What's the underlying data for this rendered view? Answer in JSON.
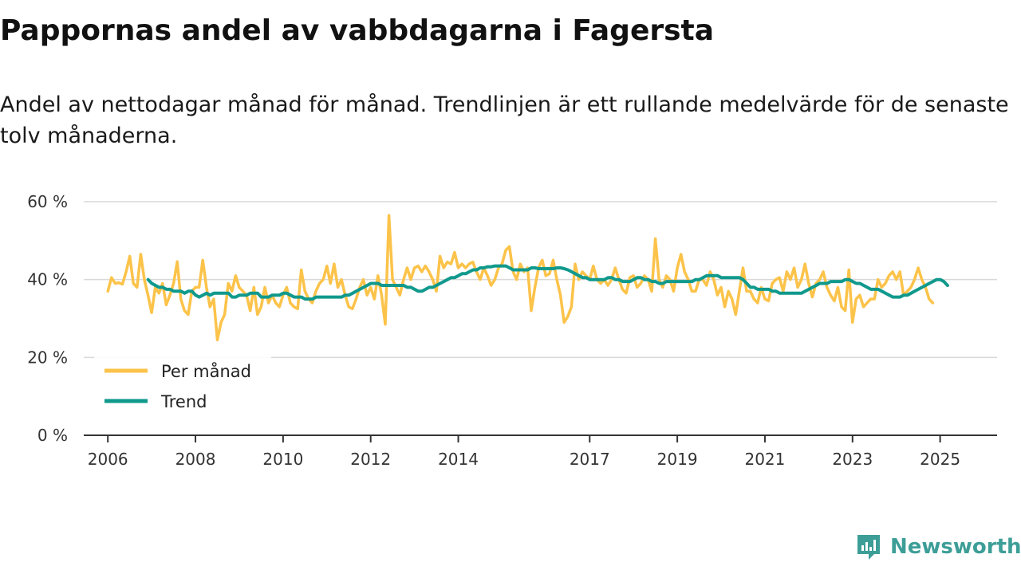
{
  "title": "Pappornas andel av vabbdagarna i Fagersta",
  "subtitle": "Andel av nettodagar månad för månad. Trendlinjen är ett rullande medelvärde för de senaste tolv månaderna.",
  "brand": {
    "name": "Newsworthy",
    "color": "#3d9e97",
    "icon": "newsworthy-logo-icon"
  },
  "chart_data": {
    "type": "line",
    "title": "Pappornas andel av vabbdagarna i Fagersta",
    "xlabel": "",
    "ylabel": "",
    "ylim": [
      0,
      60
    ],
    "xlim": [
      2005.45,
      2026.3
    ],
    "grid": true,
    "x_ticks": [
      2006,
      2008,
      2010,
      2012,
      2014,
      2017,
      2019,
      2021,
      2023,
      2025
    ],
    "x_tick_labels": [
      "2006",
      "2008",
      "2010",
      "2012",
      "2014",
      "2017",
      "2019",
      "2021",
      "2023",
      "2025"
    ],
    "y_ticks": [
      0,
      20,
      40,
      60
    ],
    "y_tick_labels": [
      "0 %",
      "20 %",
      "40 %",
      "60 %"
    ],
    "legend_position": "bottom-left",
    "series": [
      {
        "name": "Per månad",
        "color": "#fcc34a",
        "x_start": 2006.0,
        "step": 0.08333,
        "values": [
          37,
          40.5,
          39,
          39.2,
          38.8,
          42,
          46,
          39,
          38,
          46.5,
          40,
          36,
          31.5,
          38,
          36.5,
          39,
          33.5,
          36,
          39,
          44.6,
          35,
          32,
          31,
          37,
          38,
          38,
          45,
          38,
          33,
          35,
          24.5,
          29,
          31,
          39,
          37,
          41,
          38,
          37,
          36,
          32,
          38,
          31,
          33,
          38,
          34,
          36,
          34,
          33,
          36,
          38,
          34,
          33,
          32.5,
          42.5,
          37,
          35,
          34,
          37,
          39,
          40,
          43.5,
          39,
          44,
          38,
          40,
          36,
          33,
          32.5,
          35,
          38,
          40,
          36,
          38,
          35,
          41,
          36,
          28.5,
          56.5,
          40,
          38,
          36,
          40,
          43,
          40,
          43,
          43.5,
          42,
          43.5,
          42,
          40,
          37,
          46,
          43,
          44.5,
          44,
          47,
          43,
          44,
          43,
          44,
          44.5,
          42,
          40,
          43,
          41,
          38.5,
          40,
          43,
          44,
          47.5,
          48.5,
          42,
          40,
          44,
          42,
          43,
          32,
          38,
          43,
          45,
          41,
          41.5,
          45,
          40,
          36,
          29,
          30.5,
          33,
          44,
          40,
          42,
          41,
          40,
          43.5,
          40,
          39,
          40,
          38.5,
          40,
          43,
          40,
          37.5,
          36.5,
          40.5,
          41,
          38,
          39,
          41,
          40,
          37,
          50.5,
          40,
          38,
          41,
          40,
          37,
          43,
          46.5,
          42,
          40,
          37,
          37,
          40,
          40,
          38.5,
          42,
          40,
          36,
          38,
          33,
          37,
          35,
          31,
          37,
          43,
          37,
          37,
          35,
          34,
          38,
          35,
          34.5,
          39,
          40,
          40.5,
          37,
          42,
          40,
          43,
          38,
          40,
          44,
          39,
          35.5,
          39,
          40,
          42,
          38,
          36,
          34.5,
          38,
          33,
          32,
          42.5,
          29,
          35,
          36,
          33,
          34,
          35,
          35,
          40,
          38,
          39,
          41,
          42,
          40,
          42,
          36,
          37,
          38,
          40,
          43,
          40,
          38,
          35,
          34
        ]
      },
      {
        "name": "Trend",
        "color": "#10998c",
        "x_start": 2006.92,
        "step": 0.08333,
        "values": [
          40,
          39,
          38.5,
          38,
          38,
          37.5,
          37.5,
          37,
          37,
          37,
          36.5,
          37,
          37,
          36,
          35.5,
          36,
          36.5,
          36,
          36.5,
          36.5,
          36.5,
          36.5,
          36.5,
          35.5,
          35.5,
          36,
          36,
          36,
          36.5,
          36.5,
          36.5,
          35.5,
          35.5,
          35.5,
          36,
          36,
          36,
          36.5,
          36.5,
          36,
          35.5,
          35.5,
          35.5,
          35,
          35,
          35,
          35.5,
          35.5,
          35.5,
          35.5,
          35.5,
          35.5,
          35.5,
          35.5,
          36,
          36,
          36.5,
          37,
          37.5,
          38,
          38.5,
          39,
          39,
          39,
          38.5,
          38.5,
          38.5,
          38.5,
          38.5,
          38.5,
          38.5,
          38,
          38,
          37.5,
          37,
          37,
          37.5,
          38,
          38,
          38.5,
          39,
          39.5,
          40,
          40.5,
          40.5,
          41,
          41.5,
          41.5,
          42,
          42.5,
          42.5,
          43,
          43,
          43.3,
          43.3,
          43.5,
          43.5,
          43.5,
          43.5,
          43,
          42.5,
          42.5,
          42.5,
          42.5,
          42.5,
          43,
          43,
          42.8,
          42.8,
          42.8,
          42.8,
          42.8,
          43,
          43,
          42.8,
          42.5,
          42,
          41.5,
          41,
          40.5,
          40.5,
          40,
          40,
          40,
          40,
          40,
          40.5,
          40.5,
          40,
          40,
          39.5,
          39.5,
          39.5,
          40,
          40.5,
          40.5,
          40,
          40,
          39.5,
          39.5,
          39,
          39,
          39.5,
          39.5,
          39.5,
          39.5,
          39.5,
          39.5,
          39.5,
          39.5,
          40,
          40,
          40.5,
          41,
          41,
          41,
          41,
          40.5,
          40.5,
          40.5,
          40.5,
          40.5,
          40.5,
          40,
          39,
          38,
          38,
          37.5,
          37.5,
          37.5,
          37.5,
          37,
          37,
          36.5,
          36.5,
          36.5,
          36.5,
          36.5,
          36.5,
          36.5,
          37,
          37.5,
          38,
          38.5,
          39,
          39,
          39,
          39.5,
          39.5,
          39.5,
          39.5,
          40,
          40,
          39.5,
          39,
          39,
          38.5,
          38,
          37.5,
          37.5,
          37.5,
          37,
          36.5,
          36,
          35.5,
          35.5,
          35.5,
          36,
          36,
          36.5,
          37,
          37.5,
          38,
          38.5,
          39,
          39.5,
          40,
          40,
          39.5,
          38.5
        ]
      }
    ]
  }
}
